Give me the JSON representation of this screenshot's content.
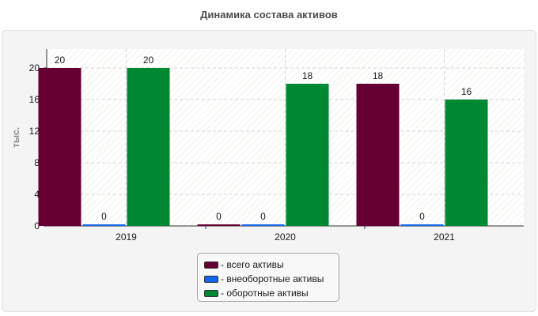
{
  "chart_data": {
    "type": "bar",
    "title": "Динамика состава активов",
    "ylabel": "тыс.",
    "xlabel": "",
    "categories": [
      "2019",
      "2020",
      "2021"
    ],
    "series": [
      {
        "name": "- всего активы",
        "values": [
          20,
          0,
          18
        ]
      },
      {
        "name": "- внеоборотные активы",
        "values": [
          0,
          0,
          0
        ]
      },
      {
        "name": "- оборотные активы",
        "values": [
          20,
          18,
          16
        ]
      }
    ],
    "ylim": [
      0,
      22.4
    ],
    "yticks": [
      "0",
      "4",
      "8",
      "12",
      "16",
      "20"
    ],
    "grid": true,
    "legend_position": "bottom",
    "colors": [
      "#660033",
      "#1166ee",
      "#008833"
    ]
  }
}
